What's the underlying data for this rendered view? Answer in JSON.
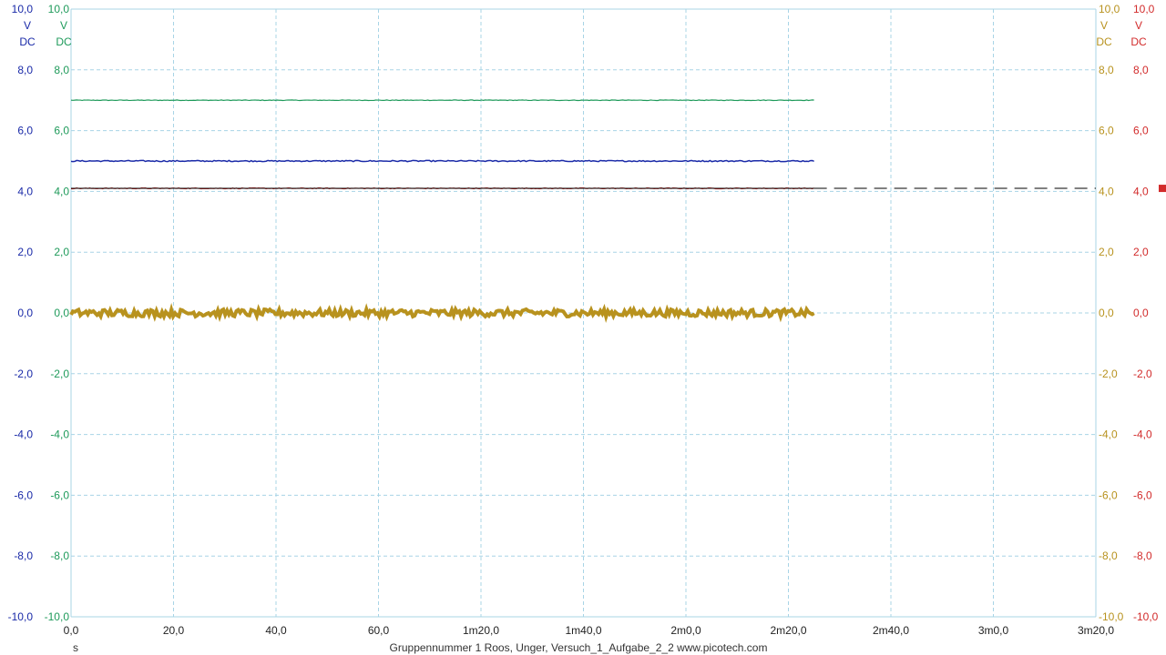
{
  "footer": {
    "unit": "s",
    "caption": "Gruppennummer 1 Roos, Unger, Versuch_1_Aufgabe_2_2   www.picotech.com"
  },
  "chart_data": {
    "type": "line",
    "grid": true,
    "x_axis": {
      "ticks": [
        "0,0",
        "20,0",
        "40,0",
        "60,0",
        "1m20,0",
        "1m40,0",
        "2m0,0",
        "2m20,0",
        "2m40,0",
        "3m0,0",
        "3m20,0"
      ],
      "range_s": [
        0,
        200
      ],
      "unit": "s"
    },
    "y_ticks": [
      "10,0",
      "8,0",
      "6,0",
      "4,0",
      "2,0",
      "0,0",
      "-2,0",
      "-4,0",
      "-6,0",
      "-8,0",
      "-10,0"
    ],
    "y_range": [
      -10,
      10
    ],
    "axes": [
      {
        "side": "left",
        "order": 0,
        "color": "#1a2aa8",
        "unit": "V",
        "coupling": "DC"
      },
      {
        "side": "left",
        "order": 1,
        "color": "#1e9a5a",
        "unit": "V",
        "coupling": "DC"
      },
      {
        "side": "right",
        "order": 0,
        "color": "#b8921e",
        "unit": "V",
        "coupling": "DC"
      },
      {
        "side": "right",
        "order": 1,
        "color": "#d22b2b",
        "unit": "V",
        "coupling": "DC"
      }
    ],
    "series": [
      {
        "color": "#1e9a5a",
        "level_v": 7.0,
        "x_start_s": 0,
        "x_end_s": 145,
        "noise_v": 0.01,
        "width": 1.2
      },
      {
        "color": "#1a2aa8",
        "level_v": 5.0,
        "x_start_s": 0,
        "x_end_s": 145,
        "noise_v": 0.02,
        "width": 1.5
      },
      {
        "color": "#d22b2b",
        "level_v": 4.1,
        "x_start_s": 0,
        "x_end_s": 145,
        "noise_v": 0.015,
        "width": 1.2
      },
      {
        "color": "#b8921e",
        "level_v": 0.0,
        "x_start_s": 0,
        "x_end_s": 145,
        "noise_v": 0.12,
        "width": 4
      }
    ],
    "trigger_line": {
      "level_v": 4.1,
      "color": "#000000",
      "marker_color": "#d22b2b"
    }
  }
}
